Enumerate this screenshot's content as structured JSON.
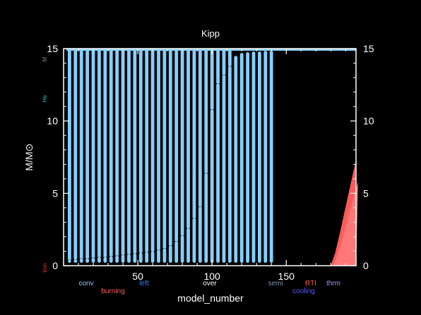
{
  "chart_data": {
    "type": "bar",
    "title": "Kipp",
    "xlabel": "model_number",
    "ylabel": "M/M⊙",
    "xlim": [
      0,
      197
    ],
    "ylim": [
      0,
      15
    ],
    "x_ticks": [
      50,
      100,
      150
    ],
    "y_ticks": [
      0,
      5,
      10,
      15
    ],
    "x_tick_labels": [
      "50",
      "100",
      "150"
    ],
    "y_tick_labels_left": [
      "0",
      "5",
      "10",
      "15"
    ],
    "y_tick_labels_right": [
      "0",
      "5",
      "10",
      "15"
    ],
    "right_axis": true,
    "grid": false,
    "colors": {
      "background": "#000000",
      "axes": "#ffffff",
      "convection": "#87cefa",
      "burning": "#ff5a5a",
      "burning_inner": "#ff7f7f",
      "left": "#2f7dff",
      "semi": "#7f8fb0",
      "rti": "#ff6040",
      "cooling": "#5a5aff",
      "thrm": "#b090ff",
      "he_label": "#3cbfbf",
      "iron_label": "#ff3030"
    },
    "series": [
      {
        "name": "conv",
        "color": "#87cefa",
        "bottom": 0.2,
        "x": [
          4,
          8,
          12,
          16,
          20,
          24,
          28,
          32,
          36,
          40,
          44,
          48,
          52,
          56,
          60,
          64,
          68,
          72,
          76,
          80,
          84,
          88,
          92,
          96,
          100,
          104,
          108,
          112,
          116,
          120,
          124,
          128,
          132,
          136,
          140
        ],
        "top": [
          15,
          15,
          15,
          15,
          15,
          15,
          15,
          15,
          15,
          15,
          15,
          15,
          15,
          15,
          15,
          15,
          15,
          15,
          15,
          15,
          15,
          15,
          15,
          15,
          15,
          15,
          15,
          15,
          15,
          15,
          15,
          15,
          15,
          15,
          15
        ],
        "bar_top": [
          0.4,
          0.45,
          0.5,
          0.5,
          0.55,
          0.6,
          0.6,
          0.65,
          0.7,
          0.75,
          0.8,
          0.85,
          0.9,
          0.95,
          1.0,
          1.1,
          1.2,
          1.4,
          1.7,
          2.1,
          2.6,
          3.3,
          4.1,
          6.4,
          10.8,
          12.6,
          13.2,
          13.8,
          14.5,
          14.7,
          14.75,
          14.8,
          14.8,
          14.85,
          14.85
        ]
      }
    ],
    "burning_region": {
      "name": "burning",
      "x": [
        180,
        183,
        186,
        189,
        192,
        195,
        197
      ],
      "top": [
        0,
        0.9,
        2.2,
        3.6,
        5.0,
        6.4,
        7.3
      ]
    },
    "legend": {
      "placement": "bottom",
      "entries": [
        {
          "label": "conv",
          "color": "#87cefa"
        },
        {
          "label": "burning",
          "color": "#ff5a5a"
        },
        {
          "label": "left",
          "color": "#2f7dff"
        },
        {
          "label": "over",
          "color": "#ffffff"
        },
        {
          "label": "semi",
          "color": "#7f8fb0"
        },
        {
          "label": "cooling",
          "color": "#5a5aff"
        },
        {
          "label": "RTI",
          "color": "#ff6040"
        },
        {
          "label": "thrm",
          "color": "#b090ff"
        }
      ]
    },
    "side_labels": [
      {
        "label": "He",
        "color": "#3cbfbf"
      },
      {
        "label": "iron",
        "color": "#ff3030"
      },
      {
        "label": "M",
        "color": "#888888"
      }
    ]
  }
}
